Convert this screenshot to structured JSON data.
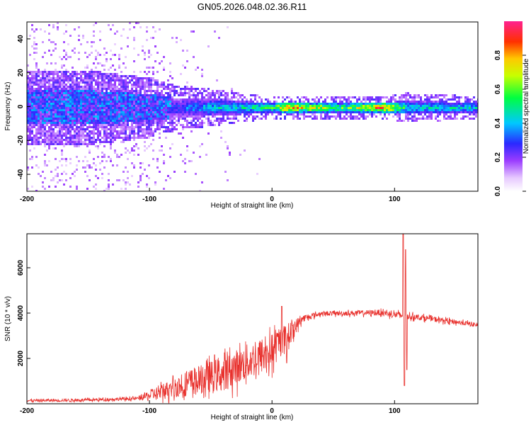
{
  "title": "GN05.2026.048.02.36.R11",
  "chart_data": [
    {
      "type": "heatmap",
      "name": "spectrogram",
      "xlabel": "Height of straight line (km)",
      "ylabel": "Frequency (Hz)",
      "xlim": [
        -200,
        168
      ],
      "ylim": [
        -50,
        50
      ],
      "x_ticks": [
        -200,
        -100,
        0,
        100
      ],
      "x_tick_labels": [
        "-200",
        "-100",
        "0",
        "100"
      ],
      "y_ticks": [
        -40,
        -20,
        0,
        20,
        40
      ],
      "y_tick_labels": [
        "-40",
        "-20",
        "0",
        "20",
        "40"
      ],
      "colorbar": {
        "label": "Normalized spectral amplitude",
        "range": [
          0,
          1
        ],
        "ticks": [
          0.0,
          0.2,
          0.4,
          0.6,
          0.8
        ],
        "tick_labels": [
          "0.0",
          "0.2",
          "0.4",
          "0.6",
          "0.8"
        ]
      },
      "ridge_profile": [
        {
          "x": -200,
          "width_hz": 10,
          "amp": 0.15,
          "scatter": 0.9
        },
        {
          "x": -150,
          "width_hz": 10,
          "amp": 0.17,
          "scatter": 0.9
        },
        {
          "x": -100,
          "width_hz": 8,
          "amp": 0.2,
          "scatter": 0.7
        },
        {
          "x": -80,
          "width_hz": 6,
          "amp": 0.3,
          "scatter": 0.25
        },
        {
          "x": -50,
          "width_hz": 5,
          "amp": 0.42,
          "scatter": 0.1
        },
        {
          "x": -30,
          "width_hz": 4,
          "amp": 0.45,
          "scatter": 0.03
        },
        {
          "x": 0,
          "width_hz": 3,
          "amp": 0.55,
          "scatter": 0
        },
        {
          "x": 10,
          "width_hz": 3,
          "amp": 0.85,
          "scatter": 0
        },
        {
          "x": 60,
          "width_hz": 3,
          "amp": 0.55,
          "scatter": 0
        },
        {
          "x": 90,
          "width_hz": 3,
          "amp": 0.9,
          "scatter": 0
        },
        {
          "x": 110,
          "width_hz": 4,
          "amp": 0.45,
          "scatter": 0
        },
        {
          "x": 168,
          "width_hz": 3,
          "amp": 0.45,
          "scatter": 0
        }
      ]
    },
    {
      "type": "line",
      "name": "snr",
      "xlabel": "Height of straight line (km)",
      "ylabel": "SNR (10 * v/v)",
      "xlim": [
        -200,
        168
      ],
      "ylim": [
        0,
        7500
      ],
      "x_ticks": [
        -200,
        -100,
        0,
        100
      ],
      "x_tick_labels": [
        "-200",
        "-100",
        "0",
        "100"
      ],
      "y_ticks": [
        2000,
        4000,
        6000
      ],
      "y_tick_labels": [
        "2000",
        "4000",
        "6000"
      ],
      "series": [
        {
          "name": "SNR",
          "color": "#e8302c",
          "envelope": [
            {
              "x": -200,
              "base": 150,
              "noise": 120
            },
            {
              "x": -150,
              "base": 180,
              "noise": 130
            },
            {
              "x": -110,
              "base": 250,
              "noise": 150
            },
            {
              "x": -95,
              "base": 500,
              "noise": 600
            },
            {
              "x": -70,
              "base": 1000,
              "noise": 1100
            },
            {
              "x": -40,
              "base": 1500,
              "noise": 1500
            },
            {
              "x": -20,
              "base": 2000,
              "noise": 1600
            },
            {
              "x": 0,
              "base": 2500,
              "noise": 1600
            },
            {
              "x": 10,
              "base": 3000,
              "noise": 1200
            },
            {
              "x": 25,
              "base": 3800,
              "noise": 300
            },
            {
              "x": 40,
              "base": 4000,
              "noise": 200
            },
            {
              "x": 90,
              "base": 4050,
              "noise": 250
            },
            {
              "x": 102,
              "base": 3950,
              "noise": 350
            },
            {
              "x": 120,
              "base": 3850,
              "noise": 250
            },
            {
              "x": 168,
              "base": 3500,
              "noise": 200
            }
          ],
          "spikes": [
            {
              "x": 107,
              "value": 7500
            },
            {
              "x": 108,
              "value": 800
            },
            {
              "x": 109,
              "value": 6800
            },
            {
              "x": 110,
              "value": 1500
            },
            {
              "x": 8,
              "value": 4300
            },
            {
              "x": 12,
              "value": 1800
            }
          ]
        }
      ]
    }
  ]
}
